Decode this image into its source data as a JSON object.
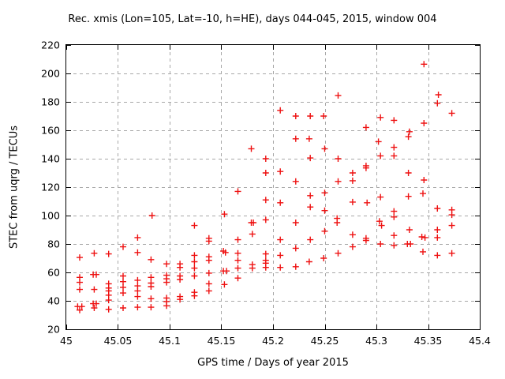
{
  "chart_data": {
    "type": "scatter",
    "title": "Rec. xmis (Lon=105, Lat=-10, h=HE), days 044-045, 2015, window 004",
    "xlabel": "GPS time / Days of year 2015",
    "ylabel": "STEC from uqrg / TECUs",
    "xlim": [
      45,
      45.4
    ],
    "ylim": [
      20,
      220
    ],
    "x_ticks": [
      45,
      45.05,
      45.1,
      45.15,
      45.2,
      45.25,
      45.3,
      45.35,
      45.4
    ],
    "x_tick_labels": [
      "45",
      "45.05",
      "45.1",
      "45.15",
      "45.2",
      "45.25",
      "45.3",
      "45.35",
      "45.4"
    ],
    "y_ticks": [
      20,
      40,
      60,
      80,
      100,
      120,
      140,
      160,
      180,
      200,
      220
    ],
    "y_tick_labels": [
      "20",
      "40",
      "60",
      "80",
      "100",
      "120",
      "140",
      "160",
      "180",
      "200",
      "220"
    ],
    "grid": true,
    "legend": "none",
    "marker": "plus",
    "marker_color": "#ee1111",
    "grid_color": "#a8a8a8",
    "axis_color": "#000000",
    "series": [
      {
        "name": "STEC",
        "points": [
          [
            45.013,
            70.5
          ],
          [
            45.013,
            56.5
          ],
          [
            45.013,
            53
          ],
          [
            45.013,
            48
          ],
          [
            45.011,
            36
          ],
          [
            45.015,
            36
          ],
          [
            45.013,
            33.5
          ],
          [
            45.027,
            73.5
          ],
          [
            45.026,
            58.5
          ],
          [
            45.029,
            58.5
          ],
          [
            45.027,
            48
          ],
          [
            45.026,
            38
          ],
          [
            45.029,
            38
          ],
          [
            45.027,
            35
          ],
          [
            45.041,
            73
          ],
          [
            45.041,
            52
          ],
          [
            45.041,
            49
          ],
          [
            45.041,
            47
          ],
          [
            45.041,
            44
          ],
          [
            45.041,
            40.5
          ],
          [
            45.041,
            34
          ],
          [
            45.055,
            78
          ],
          [
            45.055,
            57.5
          ],
          [
            45.055,
            53.5
          ],
          [
            45.055,
            49.5
          ],
          [
            45.055,
            45.5
          ],
          [
            45.055,
            35
          ],
          [
            45.069,
            84.5
          ],
          [
            45.069,
            74
          ],
          [
            45.069,
            54.5
          ],
          [
            45.069,
            50.5
          ],
          [
            45.069,
            47
          ],
          [
            45.069,
            43
          ],
          [
            45.069,
            35.5
          ],
          [
            45.083,
            100
          ],
          [
            45.082,
            69
          ],
          [
            45.082,
            56.5
          ],
          [
            45.082,
            52.5
          ],
          [
            45.082,
            50
          ],
          [
            45.082,
            41.5
          ],
          [
            45.082,
            35.5
          ],
          [
            45.097,
            66
          ],
          [
            45.097,
            58
          ],
          [
            45.097,
            55.5
          ],
          [
            45.097,
            53
          ],
          [
            45.097,
            42
          ],
          [
            45.097,
            39.5
          ],
          [
            45.097,
            36.5
          ],
          [
            45.11,
            66
          ],
          [
            45.11,
            63.5
          ],
          [
            45.11,
            57.5
          ],
          [
            45.11,
            55
          ],
          [
            45.11,
            43
          ],
          [
            45.11,
            41
          ],
          [
            45.124,
            93
          ],
          [
            45.124,
            72
          ],
          [
            45.124,
            67.5
          ],
          [
            45.124,
            63
          ],
          [
            45.124,
            57.5
          ],
          [
            45.124,
            46
          ],
          [
            45.124,
            43.5
          ],
          [
            45.138,
            84
          ],
          [
            45.138,
            82
          ],
          [
            45.138,
            71
          ],
          [
            45.138,
            68.5
          ],
          [
            45.138,
            59.5
          ],
          [
            45.138,
            52
          ],
          [
            45.138,
            47
          ],
          [
            45.153,
            101
          ],
          [
            45.152,
            75
          ],
          [
            45.154,
            74
          ],
          [
            45.152,
            61
          ],
          [
            45.155,
            61
          ],
          [
            45.153,
            51.5
          ],
          [
            45.166,
            117
          ],
          [
            45.166,
            83
          ],
          [
            45.166,
            73.5
          ],
          [
            45.166,
            68.5
          ],
          [
            45.166,
            63
          ],
          [
            45.166,
            56
          ],
          [
            45.179,
            147
          ],
          [
            45.179,
            95
          ],
          [
            45.181,
            95
          ],
          [
            45.18,
            87
          ],
          [
            45.18,
            65.5
          ],
          [
            45.18,
            63
          ],
          [
            45.193,
            140
          ],
          [
            45.193,
            130
          ],
          [
            45.193,
            111
          ],
          [
            45.193,
            97
          ],
          [
            45.193,
            73
          ],
          [
            45.193,
            68.5
          ],
          [
            45.193,
            66.5
          ],
          [
            45.193,
            63.5
          ],
          [
            45.207,
            174
          ],
          [
            45.207,
            131
          ],
          [
            45.207,
            109
          ],
          [
            45.207,
            83
          ],
          [
            45.207,
            72
          ],
          [
            45.207,
            63.5
          ],
          [
            45.222,
            170
          ],
          [
            45.222,
            154
          ],
          [
            45.222,
            124
          ],
          [
            45.222,
            95
          ],
          [
            45.222,
            77
          ],
          [
            45.222,
            64
          ],
          [
            45.236,
            170
          ],
          [
            45.235,
            154
          ],
          [
            45.236,
            140.5
          ],
          [
            45.236,
            114
          ],
          [
            45.236,
            106
          ],
          [
            45.236,
            83
          ],
          [
            45.235,
            67.5
          ],
          [
            45.249,
            170
          ],
          [
            45.25,
            147
          ],
          [
            45.25,
            116
          ],
          [
            45.25,
            103.5
          ],
          [
            45.25,
            89
          ],
          [
            45.249,
            70
          ],
          [
            45.263,
            184.5
          ],
          [
            45.263,
            140
          ],
          [
            45.263,
            124
          ],
          [
            45.262,
            98
          ],
          [
            45.262,
            95
          ],
          [
            45.263,
            73.5
          ],
          [
            45.277,
            130
          ],
          [
            45.277,
            124.5
          ],
          [
            45.277,
            109.5
          ],
          [
            45.277,
            86.5
          ],
          [
            45.277,
            78
          ],
          [
            45.29,
            162
          ],
          [
            45.29,
            135
          ],
          [
            45.29,
            133.5
          ],
          [
            45.291,
            109
          ],
          [
            45.29,
            84
          ],
          [
            45.29,
            82.5
          ],
          [
            45.304,
            169
          ],
          [
            45.302,
            152
          ],
          [
            45.304,
            142
          ],
          [
            45.304,
            113
          ],
          [
            45.303,
            96
          ],
          [
            45.305,
            93
          ],
          [
            45.304,
            80
          ],
          [
            45.317,
            167
          ],
          [
            45.317,
            148
          ],
          [
            45.317,
            142
          ],
          [
            45.317,
            103
          ],
          [
            45.317,
            99
          ],
          [
            45.317,
            86
          ],
          [
            45.317,
            79
          ],
          [
            45.332,
            159
          ],
          [
            45.331,
            155.5
          ],
          [
            45.331,
            130
          ],
          [
            45.331,
            113.5
          ],
          [
            45.332,
            90
          ],
          [
            45.33,
            80
          ],
          [
            45.333,
            80
          ],
          [
            45.346,
            206.5
          ],
          [
            45.346,
            165
          ],
          [
            45.346,
            125
          ],
          [
            45.345,
            115.5
          ],
          [
            45.344,
            85
          ],
          [
            45.347,
            84.5
          ],
          [
            45.345,
            74.5
          ],
          [
            45.36,
            185
          ],
          [
            45.359,
            179
          ],
          [
            45.359,
            105
          ],
          [
            45.359,
            90
          ],
          [
            45.359,
            84.5
          ],
          [
            45.359,
            72
          ],
          [
            45.373,
            172
          ],
          [
            45.373,
            104
          ],
          [
            45.373,
            100.5
          ],
          [
            45.373,
            93
          ],
          [
            45.373,
            73.5
          ]
        ]
      }
    ]
  }
}
